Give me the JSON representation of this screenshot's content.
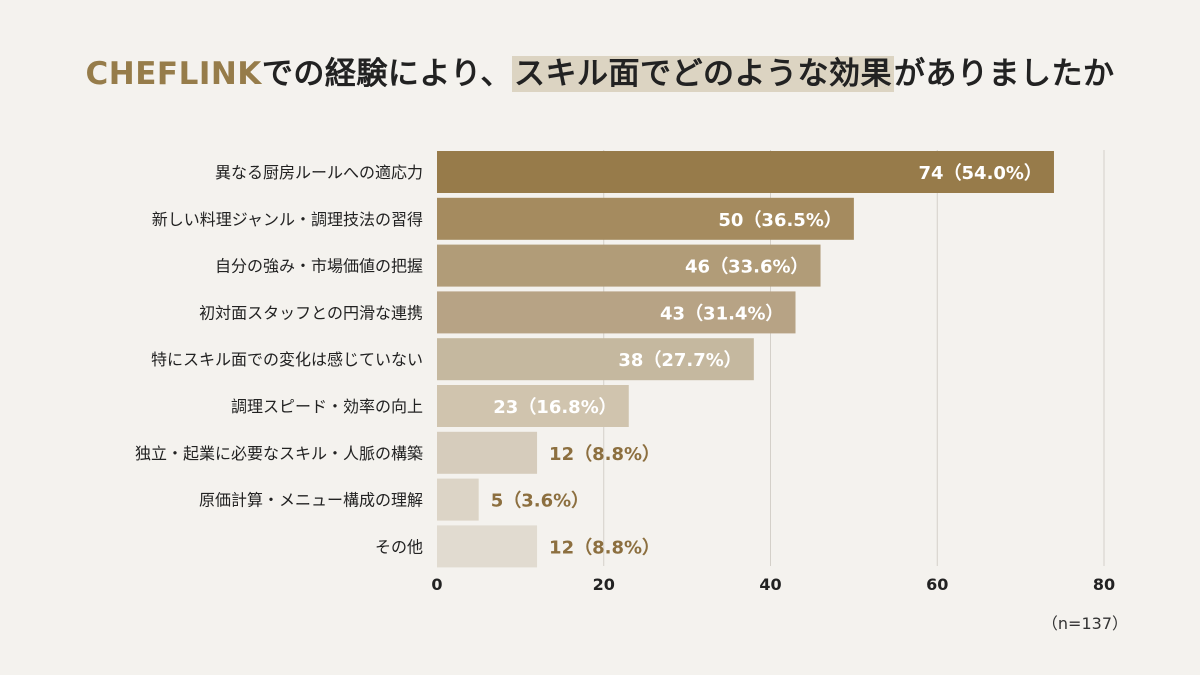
{
  "title": {
    "brand": "CHEFLINK",
    "part1": "での経験により、",
    "highlight": "スキル面でどのような効果",
    "part2": "がありましたか"
  },
  "note": "（n=137）",
  "colors": {
    "background": "#f4f2ee",
    "gridline": "#d4d0c9",
    "title_brand": "#967c4a",
    "title_highlight": "#dcd4c2",
    "label_inside": "#ffffff",
    "label_outside": "#8c6f3f",
    "bars": [
      "#977b4a",
      "#a58b5f",
      "#b19c78",
      "#b7a385",
      "#c5b89f",
      "#d0c4ae",
      "#d6ccbc",
      "#dcd4c6",
      "#e1dbd0"
    ]
  },
  "chart_data": {
    "type": "bar",
    "orientation": "horizontal",
    "title": "CHEFLINKでの経験により、スキル面でどのような効果がありましたか",
    "categories": [
      "異なる厨房ルールへの適応力",
      "新しい料理ジャンル・調理技法の習得",
      "自分の強み・市場価値の把握",
      "初対面スタッフとの円滑な連携",
      "特にスキル面での変化は感じていない",
      "調理スピード・効率の向上",
      "独立・起業に必要なスキル・人脈の構築",
      "原価計算・メニュー構成の理解",
      "その他"
    ],
    "values": [
      74,
      50,
      46,
      43,
      38,
      23,
      12,
      5,
      12
    ],
    "data_labels": [
      "74（54.0%）",
      "50（36.5%）",
      "46（33.6%）",
      "43（31.4%）",
      "38（27.7%）",
      "23（16.8%）",
      "12（8.8%）",
      "5（3.6%）",
      "12（8.8%）"
    ],
    "label_inside": [
      true,
      true,
      true,
      true,
      true,
      true,
      false,
      false,
      false
    ],
    "xlim": [
      0,
      80
    ],
    "xticks": [
      0,
      20,
      40,
      60,
      80
    ],
    "grid": true,
    "legend": "none"
  }
}
